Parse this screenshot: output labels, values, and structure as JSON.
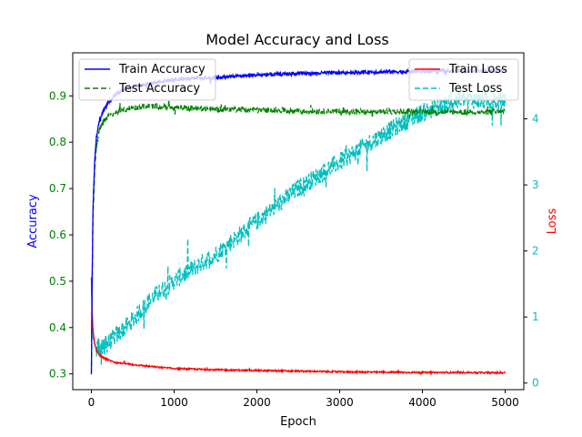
{
  "chart_data": {
    "type": "line",
    "title": "Model Accuracy and Loss",
    "xlabel": "Epoch",
    "ylabel_left": "Accuracy",
    "ylabel_right": "Loss",
    "xlim": [
      -225,
      5225
    ],
    "ylim_left": [
      0.266,
      0.993
    ],
    "ylim_right": [
      -0.1,
      5.0
    ],
    "x_ticks": [
      0,
      1000,
      2000,
      3000,
      4000,
      5000
    ],
    "y_ticks_left": [
      0.3,
      0.4,
      0.5,
      0.6,
      0.7,
      0.8,
      0.9
    ],
    "y_ticks_right": [
      0,
      1,
      2,
      3,
      4
    ],
    "legends": [
      {
        "placement": "upper-left",
        "entries": [
          "Train Accuracy",
          "Test Accuracy"
        ]
      },
      {
        "placement": "upper-right",
        "entries": [
          "Train Loss",
          "Test Loss"
        ]
      }
    ],
    "series": [
      {
        "name": "Train Accuracy",
        "axis": "left",
        "color": "#0000ff",
        "dash": "solid",
        "x": [
          0,
          10,
          20,
          40,
          60,
          100,
          150,
          200,
          300,
          500,
          800,
          1000,
          1500,
          2000,
          2500,
          3000,
          3500,
          4000,
          4500,
          5000
        ],
        "y": [
          0.3,
          0.52,
          0.66,
          0.76,
          0.81,
          0.85,
          0.87,
          0.885,
          0.905,
          0.92,
          0.93,
          0.935,
          0.94,
          0.945,
          0.948,
          0.95,
          0.952,
          0.953,
          0.954,
          0.955
        ]
      },
      {
        "name": "Test Accuracy",
        "axis": "left",
        "color": "#008000",
        "dash": "dashed",
        "x": [
          0,
          10,
          20,
          40,
          60,
          100,
          150,
          200,
          300,
          500,
          700,
          1000,
          1500,
          2000,
          2500,
          3000,
          3500,
          4000,
          4500,
          5000
        ],
        "y": [
          0.3,
          0.5,
          0.64,
          0.74,
          0.79,
          0.83,
          0.845,
          0.855,
          0.865,
          0.875,
          0.878,
          0.875,
          0.872,
          0.87,
          0.868,
          0.866,
          0.866,
          0.866,
          0.865,
          0.865
        ]
      },
      {
        "name": "Train Loss",
        "axis": "right",
        "color": "#ff0000",
        "dash": "solid",
        "x": [
          0,
          10,
          20,
          40,
          60,
          100,
          150,
          200,
          300,
          500,
          800,
          1000,
          1500,
          2000,
          2500,
          3000,
          3500,
          4000,
          4500,
          5000
        ],
        "y": [
          1.6,
          1.05,
          0.8,
          0.6,
          0.5,
          0.42,
          0.38,
          0.35,
          0.31,
          0.28,
          0.24,
          0.22,
          0.2,
          0.19,
          0.18,
          0.17,
          0.165,
          0.16,
          0.16,
          0.155
        ]
      },
      {
        "name": "Test Loss",
        "axis": "right",
        "color": "#00bfbf",
        "dash": "dashed",
        "x": [
          0,
          10,
          20,
          40,
          60,
          100,
          200,
          300,
          500,
          700,
          1000,
          1500,
          2000,
          2500,
          3000,
          3500,
          4000,
          4500,
          5000
        ],
        "y": [
          1.5,
          0.95,
          0.7,
          0.58,
          0.54,
          0.52,
          0.6,
          0.72,
          0.95,
          1.25,
          1.55,
          1.95,
          2.45,
          2.95,
          3.35,
          3.75,
          4.1,
          4.3,
          4.25
        ]
      }
    ]
  }
}
